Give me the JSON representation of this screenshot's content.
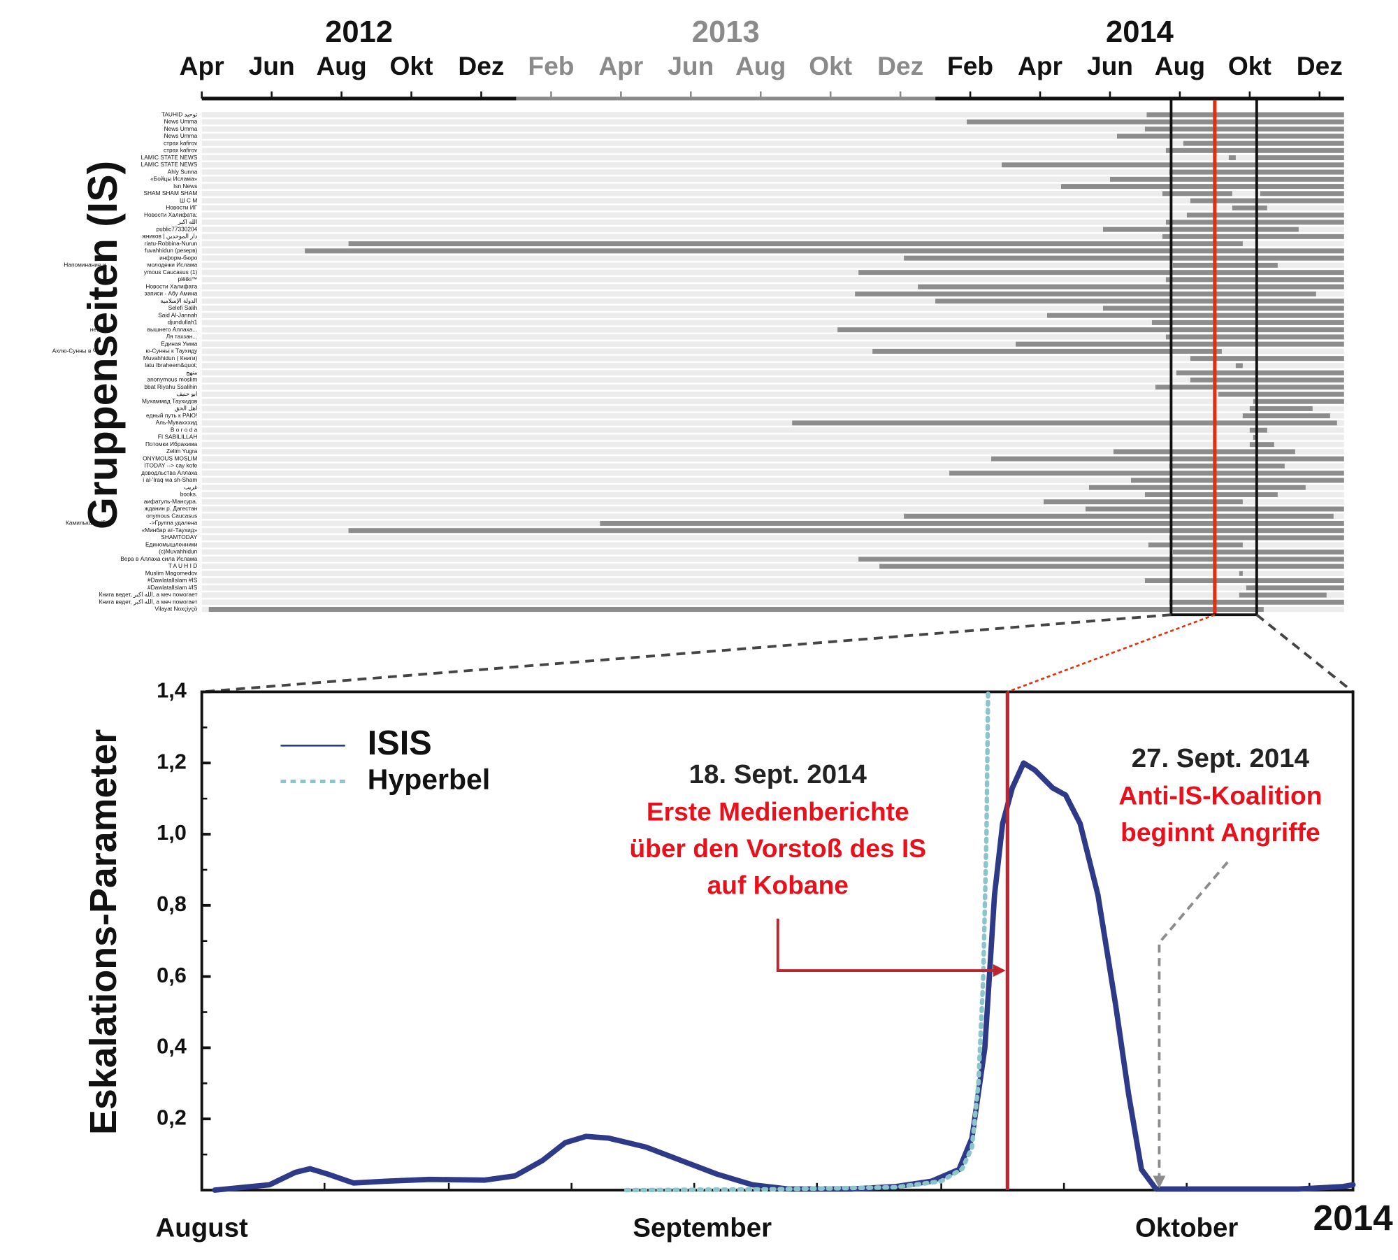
{
  "chart_data": [
    {
      "type": "timeline",
      "y_label": "Gruppenseiten (IS)",
      "years": [
        "2012",
        "2013",
        "2014"
      ],
      "year_colors": [
        "#111111",
        "#8a8a8a",
        "#111111"
      ],
      "xlim": [
        3,
        35.7
      ],
      "xticks": [
        {
          "value": 3,
          "label": "Apr"
        },
        {
          "value": 5,
          "label": "Jun"
        },
        {
          "value": 7,
          "label": "Aug"
        },
        {
          "value": 9,
          "label": "Okt"
        },
        {
          "value": 11,
          "label": "Dez"
        },
        {
          "value": 13,
          "label": "Feb"
        },
        {
          "value": 15,
          "label": "Apr"
        },
        {
          "value": 17,
          "label": "Jun"
        },
        {
          "value": 19,
          "label": "Aug"
        },
        {
          "value": 21,
          "label": "Okt"
        },
        {
          "value": 23,
          "label": "Dez"
        },
        {
          "value": 25,
          "label": "Feb"
        },
        {
          "value": 27,
          "label": "Apr"
        },
        {
          "value": 29,
          "label": "Jun"
        },
        {
          "value": 31,
          "label": "Aug"
        },
        {
          "value": 33,
          "label": "Okt"
        },
        {
          "value": 35,
          "label": "Dez"
        }
      ],
      "bar_color": "#8c8c8c",
      "highlight": [
        30.75,
        33.2
      ],
      "marker": 32.0,
      "marker_color": "#e03010",
      "groups": [
        {
          "name": "TAUHID توحيد",
          "segments": [
            [
              30.05,
              35.7
            ]
          ]
        },
        {
          "name": "News Umma",
          "segments": [
            [
              24.9,
              35.7
            ]
          ]
        },
        {
          "name": "News Umma",
          "segments": [
            [
              30.0,
              35.7
            ]
          ]
        },
        {
          "name": "News Umma",
          "segments": [
            [
              29.2,
              35.7
            ]
          ]
        },
        {
          "name": "страх kafirov",
          "segments": [
            [
              31.1,
              35.7
            ]
          ]
        },
        {
          "name": "страх kafirov",
          "segments": [
            [
              30.6,
              35.7
            ]
          ]
        },
        {
          "name": "LAMIC STATE NEWS",
          "segments": [
            [
              32.4,
              32.6
            ],
            [
              33.2,
              35.7
            ]
          ]
        },
        {
          "name": "LAMIC STATE NEWS",
          "segments": [
            [
              25.9,
              35.7
            ]
          ]
        },
        {
          "name": "Ahly Sunna",
          "segments": [
            [
              30.7,
              35.7
            ]
          ]
        },
        {
          "name": "«Бойцы Ислама»",
          "segments": [
            [
              29.0,
              35.7
            ]
          ]
        },
        {
          "name": "Isn News",
          "segments": [
            [
              27.6,
              35.7
            ]
          ]
        },
        {
          "name": "SHAM SHAM SHAM",
          "segments": [
            [
              30.5,
              32.5
            ],
            [
              33.3,
              35.7
            ]
          ]
        },
        {
          "name": "Ш С М",
          "segments": [
            [
              31.3,
              35.7
            ]
          ]
        },
        {
          "name": "Новости ИГ",
          "segments": [
            [
              32.5,
              33.5
            ]
          ]
        },
        {
          "name": "Новости Халифата:",
          "segments": [
            [
              31.2,
              35.7
            ]
          ]
        },
        {
          "name": "الله اكبر",
          "segments": [
            [
              30.6,
              35.7
            ]
          ]
        },
        {
          "name": "public77330204",
          "segments": [
            [
              28.8,
              34.4
            ]
          ]
        },
        {
          "name": "жников | دار الموحدين",
          "segments": [
            [
              30.5,
              35.7
            ]
          ]
        },
        {
          "name": "riatu-Robbina-Nurun",
          "segments": [
            [
              7.2,
              32.8
            ]
          ]
        },
        {
          "name": "fuvahhidun (резерв)",
          "segments": [
            [
              5.95,
              35.7
            ]
          ]
        },
        {
          "name": "информ-бюро",
          "segments": [
            [
              23.1,
              35.7
            ]
          ]
        },
        {
          "name": "молодежи Ислама",
          "prefix": "Напоминание и",
          "segments": [
            [
              30.8,
              33.8
            ]
          ]
        },
        {
          "name": "ymous Caucasus (1)",
          "segments": [
            [
              21.8,
              35.7
            ]
          ]
        },
        {
          "name": "plёtki™",
          "segments": [
            [
              30.6,
              35.7
            ]
          ]
        },
        {
          "name": "Новости Халифата",
          "segments": [
            [
              23.5,
              35.7
            ]
          ]
        },
        {
          "name": "записи - Абу Амина",
          "prefix": "Не",
          "segments": [
            [
              21.7,
              34.9
            ]
          ]
        },
        {
          "name": "الدولة الإسلامية",
          "segments": [
            [
              24.0,
              35.7
            ]
          ]
        },
        {
          "name": "Selefi Salih",
          "segments": [
            [
              28.8,
              35.7
            ]
          ]
        },
        {
          "name": "Said Al-Jannah",
          "segments": [
            [
              27.2,
              35.7
            ]
          ]
        },
        {
          "name": "djundullah1",
          "segments": [
            [
              30.2,
              35.7
            ]
          ]
        },
        {
          "name": "вышнего Аллаха...",
          "prefix": "нет гр",
          "segments": [
            [
              21.2,
              35.7
            ]
          ]
        },
        {
          "name": "Ля тахзан...",
          "segments": [
            [
              30.6,
              35.7
            ]
          ]
        },
        {
          "name": "Единая Умма",
          "segments": [
            [
              26.3,
              35.7
            ]
          ]
        },
        {
          "name": "ю-Сунны к Таухиду",
          "prefix": "Ахлю-Сунны в Чечн",
          "segments": [
            [
              22.2,
              32.2
            ]
          ]
        },
        {
          "name": "Muvahhidun ( Книги)",
          "segments": [
            [
              31.3,
              35.7
            ]
          ]
        },
        {
          "name": "latu Ibraheem&quot;",
          "segments": [
            [
              32.6,
              32.8
            ]
          ]
        },
        {
          "name": "منهج",
          "segments": [
            [
              30.9,
              35.7
            ]
          ]
        },
        {
          "name": "anonymous moslim",
          "segments": [
            [
              31.3,
              35.7
            ]
          ]
        },
        {
          "name": "bbat Riyahu Ssalihin",
          "segments": [
            [
              30.3,
              35.7
            ]
          ]
        },
        {
          "name": "ابو حنيف",
          "segments": [
            [
              32.1,
              35.7
            ]
          ]
        },
        {
          "name": "Мухаммад Таухидов",
          "segments": [
            [
              33.1,
              35.7
            ]
          ]
        },
        {
          "name": "اهل الحق",
          "segments": [
            [
              33.0,
              34.8
            ]
          ]
        },
        {
          "name": "едный путь к РАЮ!",
          "segments": [
            [
              32.8,
              35.3
            ]
          ]
        },
        {
          "name": "Аль-Мувахххид",
          "segments": [
            [
              19.9,
              35.5
            ]
          ]
        },
        {
          "name": "B o r o d a",
          "segments": [
            [
              33.0,
              33.5
            ]
          ]
        },
        {
          "name": "FI SABILILLAH",
          "segments": [
            [
              33.1,
              33.2
            ]
          ]
        },
        {
          "name": "Потомки Ибрахима",
          "segments": [
            [
              33.0,
              33.7
            ]
          ]
        },
        {
          "name": "Zelim Yugra",
          "segments": [
            [
              29.1,
              34.3
            ]
          ]
        },
        {
          "name": "ONYMOUS MOSLIM",
          "segments": [
            [
              25.6,
              35.7
            ]
          ]
        },
        {
          "name": "ITODAY --> сау kofe",
          "segments": [
            [
              30.7,
              34.0
            ]
          ]
        },
        {
          "name": "доводльства Аллаха",
          "segments": [
            [
              24.4,
              35.7
            ]
          ]
        },
        {
          "name": "i al-'Iraq wa sh-Sham",
          "segments": [
            [
              29.6,
              35.7
            ]
          ]
        },
        {
          "name": "غريب",
          "segments": [
            [
              28.4,
              34.6
            ]
          ]
        },
        {
          "name": "books.",
          "segments": [
            [
              30.0,
              33.8
            ]
          ]
        },
        {
          "name": "аифатуль-Мансура.",
          "segments": [
            [
              27.1,
              32.8
            ]
          ]
        },
        {
          "name": "жданин р. Дагестан",
          "segments": [
            [
              28.3,
              35.7
            ]
          ]
        },
        {
          "name": "onymous Caucasus",
          "segments": [
            [
              23.1,
              35.4
            ]
          ]
        },
        {
          "name": "->Группа удалена",
          "prefix": "Камилькала (Б",
          "segments": [
            [
              14.4,
              35.7
            ]
          ]
        },
        {
          "name": "«Минбар ат-Таухид»",
          "segments": [
            [
              7.2,
              35.7
            ]
          ]
        },
        {
          "name": "SHAMTODAY",
          "segments": [
            [
              30.7,
              35.7
            ]
          ]
        },
        {
          "name": "Единомышленники",
          "segments": [
            [
              30.1,
              32.8
            ]
          ]
        },
        {
          "name": "(c)Muvahhidun",
          "segments": [
            [
              30.8,
              35.7
            ]
          ]
        },
        {
          "name": "Вера в Аллаха сила Ислама",
          "segments": [
            [
              21.8,
              35.7
            ]
          ]
        },
        {
          "name": "T A U H I D",
          "segments": [
            [
              22.4,
              35.7
            ]
          ]
        },
        {
          "name": "Muslim Magomedov",
          "segments": [
            [
              32.7,
              32.8
            ]
          ]
        },
        {
          "name": "#DawlatalIslam #IS",
          "segments": [
            [
              30.0,
              35.7
            ]
          ]
        },
        {
          "name": "#DawlatalIslam #IS",
          "segments": [
            [
              32.9,
              35.7
            ]
          ]
        },
        {
          "name": "Книга ведет, الله اكبر, а меч помогает",
          "segments": [
            [
              32.7,
              35.2
            ]
          ]
        },
        {
          "name": "Книга ведет, الله اكبر, а меч помогает",
          "segments": [
            [
              30.7,
              35.7
            ]
          ]
        },
        {
          "name": "Vilayat Noxçiyçö",
          "segments": [
            [
              3.2,
              33.4
            ]
          ]
        }
      ]
    },
    {
      "type": "line",
      "y_label": "Eskalations-Parameter",
      "x_year_label": "2014",
      "xlim": [
        0,
        71.3
      ],
      "ylim": [
        0,
        1.4
      ],
      "xticks": [
        {
          "value": 0,
          "label": "August"
        },
        {
          "value": 31,
          "label": "September"
        },
        {
          "value": 61,
          "label": "Oktober"
        }
      ],
      "xminorticks": [
        7.6,
        15.3,
        22.9,
        30.5,
        38.1,
        45.8,
        53.4,
        61,
        68.6
      ],
      "yticks": [
        {
          "value": 0.2,
          "label": "0,2"
        },
        {
          "value": 0.4,
          "label": "0,4"
        },
        {
          "value": 0.6,
          "label": "0,6"
        },
        {
          "value": 0.8,
          "label": "0,8"
        },
        {
          "value": 1.0,
          "label": "1,0"
        },
        {
          "value": 1.2,
          "label": "1,2"
        },
        {
          "value": 1.4,
          "label": "1,4"
        }
      ],
      "yminorticks": [
        0.1,
        0.3,
        0.5,
        0.7,
        0.9,
        1.1,
        1.3
      ],
      "legend": "top-left",
      "series": [
        {
          "name": "ISIS",
          "color": "#2e3a87",
          "dash": false,
          "x": [
            0.8,
            4.2,
            5.8,
            6.7,
            7.8,
            9.4,
            11.4,
            14.1,
            17.5,
            19.4,
            21.1,
            22.5,
            23.8,
            25.2,
            27.5,
            29.7,
            31.9,
            34.1,
            36.3,
            40.2,
            43.0,
            45.2,
            46.9,
            47.7,
            48.5,
            49.1,
            49.6,
            50.2,
            50.9,
            51.6,
            52.7,
            53.5,
            54.4,
            55.5,
            56.6,
            57.4,
            58.2,
            59.1,
            62.4,
            67.9,
            70.7,
            71.3
          ],
          "values": [
            0.0,
            0.015,
            0.05,
            0.06,
            0.045,
            0.02,
            0.025,
            0.03,
            0.028,
            0.04,
            0.083,
            0.133,
            0.151,
            0.146,
            0.121,
            0.083,
            0.045,
            0.015,
            0.003,
            0.003,
            0.01,
            0.025,
            0.058,
            0.146,
            0.4,
            0.83,
            1.03,
            1.13,
            1.2,
            1.18,
            1.13,
            1.11,
            1.03,
            0.83,
            0.52,
            0.27,
            0.058,
            0.003,
            0.003,
            0.003,
            0.01,
            0.015
          ]
        },
        {
          "name": "Hyperbel",
          "color": "#8cc4cc",
          "dash": true,
          "x": [
            26.3,
            35.0,
            43.0,
            45.8,
            47.1,
            47.7,
            48.1,
            48.4,
            48.6,
            48.7
          ],
          "values": [
            0.0,
            0.002,
            0.008,
            0.025,
            0.06,
            0.12,
            0.3,
            0.6,
            1.0,
            1.4
          ]
        }
      ],
      "annotations": [
        {
          "x": 49.9,
          "kind": "vline",
          "color": "#c0232e",
          "date": "18. Sept. 2014",
          "lines": [
            "Erste Medienberichte",
            "über den Vorstoß des IS",
            "auf Kobane"
          ]
        },
        {
          "x": 59.3,
          "kind": "arrow",
          "color": "#8c8c8c",
          "date": "27. Sept. 2014",
          "lines": [
            "Anti-IS-Koalition",
            "beginnt Angriffe"
          ]
        }
      ]
    }
  ]
}
